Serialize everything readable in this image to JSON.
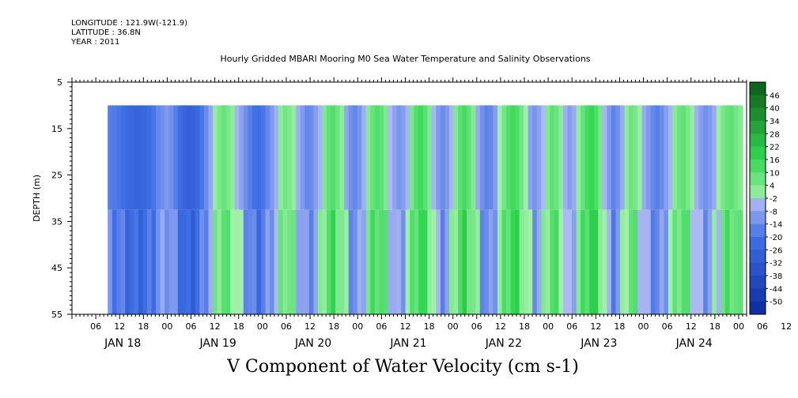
{
  "header": {
    "longitude": "LONGITUDE : 121.9W(-121.9)",
    "latitude": "LATITUDE : 36.8N",
    "year": "YEAR : 2011",
    "title": "Hourly Gridded MBARI Mooring M0 Sea Water Temperature and Salinity Observations"
  },
  "chart_data": {
    "type": "heatmap",
    "title": "Hourly Gridded MBARI Mooring M0 Sea Water Temperature and Salinity Observations",
    "variable": "V Component of Water Velocity (cm s-1)",
    "ylabel": "DEPTH (m)",
    "y_range": [
      5,
      55
    ],
    "y_inverted": true,
    "y_ticks": [
      "5",
      "15",
      "25",
      "35",
      "45",
      "55"
    ],
    "data_depth_range": [
      10,
      55
    ],
    "x_hour_ticks": [
      "06",
      "12",
      "18",
      "00",
      "06",
      "12",
      "18",
      "00",
      "06",
      "12",
      "18",
      "00",
      "06",
      "12",
      "18",
      "00",
      "06",
      "12",
      "18",
      "00",
      "06",
      "12",
      "18",
      "00",
      "06",
      "12",
      "18",
      "00",
      "06",
      "12",
      "18",
      "00"
    ],
    "x_day_labels": [
      "JAN 18",
      "JAN 19",
      "JAN 20",
      "JAN 21",
      "JAN 22",
      "JAN 23",
      "JAN 24"
    ],
    "data_start_hour": 9,
    "x_range_hours": [
      0,
      170
    ],
    "colorbar_levels": [
      "46",
      "40",
      "34",
      "28",
      "22",
      "16",
      "10",
      "4",
      "-2",
      "-8",
      "-14",
      "-20",
      "-26",
      "-32",
      "-38",
      "-44",
      "-50"
    ],
    "colorbar_min": -50,
    "colorbar_max": 50,
    "column_velocities": [
      -14,
      -15,
      -16,
      -18,
      -20,
      -21,
      -22,
      -22,
      -21,
      -19,
      -16,
      -12,
      -10,
      -8,
      -10,
      -14,
      -18,
      -22,
      -24,
      -23,
      -20,
      -16,
      -11,
      -5,
      2,
      6,
      9,
      6,
      3,
      -2,
      -6,
      -10,
      -14,
      -17,
      -18,
      -16,
      -12,
      -8,
      -3,
      3,
      7,
      5,
      2,
      -3,
      -8,
      -12,
      -11,
      -7,
      -2,
      5,
      10,
      12,
      8,
      3,
      -5,
      -10,
      -12,
      -9,
      -3,
      4,
      9,
      12,
      10,
      5,
      -1,
      -6,
      -9,
      -7,
      -2,
      6,
      12,
      15,
      11,
      5,
      -2,
      -8,
      -11,
      -8,
      -2,
      5,
      11,
      14,
      10,
      4,
      -4,
      -10,
      -13,
      -12,
      -7,
      0,
      7,
      12,
      15,
      13,
      7,
      0,
      -6,
      -9,
      -6,
      -1,
      5,
      10,
      8,
      3,
      -3,
      -7,
      -4,
      2,
      9,
      14,
      17,
      13,
      6,
      -2,
      -8,
      -13,
      -10,
      -4,
      3,
      8,
      6,
      1,
      -4,
      -8,
      -12,
      -14,
      -11,
      -7,
      -2,
      4,
      8,
      10,
      6,
      2,
      -3,
      -7,
      -10,
      -8,
      -4,
      1,
      6,
      9,
      10,
      7,
      4
    ]
  },
  "colors": {
    "negative_strong": "#0b2a9e",
    "negative": "#3f6fe6",
    "negative_light": "#b3bdf3",
    "positive_light": "#9ff0a8",
    "positive": "#2fd64f",
    "positive_strong": "#0b5a18"
  }
}
